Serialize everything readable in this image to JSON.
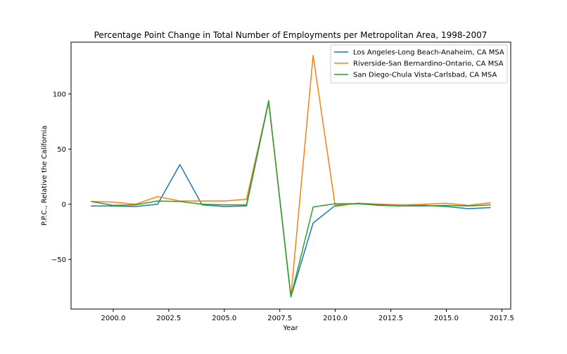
{
  "chart_data": {
    "type": "line",
    "title": "Percentage Point Change in Total Number of Employments per Metropolitan Area, 1998-2007",
    "xlabel": "Year",
    "ylabel": "P.P.C., Relative the California",
    "xlim": [
      1998.1,
      2017.9
    ],
    "ylim": [
      -95,
      147
    ],
    "x_ticks": [
      2000.0,
      2002.5,
      2005.0,
      2007.5,
      2010.0,
      2012.5,
      2015.0,
      2017.5
    ],
    "x_tick_labels": [
      "2000.0",
      "2002.5",
      "2005.0",
      "2007.5",
      "2010.0",
      "2012.5",
      "2015.0",
      "2017.5"
    ],
    "y_ticks": [
      -50,
      0,
      50,
      100
    ],
    "y_tick_labels": [
      "−50",
      "0",
      "50",
      "100"
    ],
    "x": [
      1999,
      2000,
      2001,
      2002,
      2003,
      2004,
      2005,
      2006,
      2007,
      2008,
      2009,
      2010,
      2011,
      2012,
      2013,
      2014,
      2015,
      2016,
      2017
    ],
    "grid": false,
    "legend_position": "top-right",
    "series": [
      {
        "name": "Los Angeles-Long Beach-Anaheim, CA MSA",
        "color": "#1f77b4",
        "values": [
          -1.5,
          -1.5,
          -2,
          0,
          36,
          -0.5,
          -2,
          -1.5,
          93,
          -84,
          -17,
          -1,
          0.5,
          -1,
          -1.5,
          -1,
          -2,
          -4,
          -3
        ]
      },
      {
        "name": "Riverside-San Bernardino-Ontario, CA MSA",
        "color": "#ff7f0e",
        "values": [
          2.5,
          2,
          0,
          7,
          3,
          3,
          3,
          4.5,
          93,
          -84,
          135,
          -2,
          1,
          0,
          -0.5,
          0,
          1,
          -1,
          1.5
        ]
      },
      {
        "name": "San Diego-Chula Vista-Carlsbad, CA MSA",
        "color": "#2ca02c",
        "values": [
          2.5,
          -1,
          -0.5,
          3,
          2.5,
          0,
          -0.5,
          -0.5,
          94,
          -84,
          -2.5,
          0.5,
          0.5,
          -0.5,
          -1.5,
          -1.5,
          -1,
          -1.5,
          -0.5
        ]
      }
    ]
  }
}
